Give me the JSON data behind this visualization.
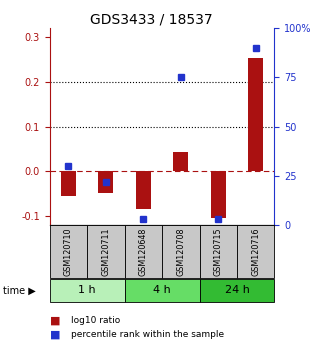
{
  "title": "GDS3433 / 18537",
  "samples": [
    "GSM120710",
    "GSM120711",
    "GSM120648",
    "GSM120708",
    "GSM120715",
    "GSM120716"
  ],
  "log10_ratio": [
    -0.055,
    -0.048,
    -0.085,
    0.042,
    -0.105,
    0.253
  ],
  "percentile_rank_pct": [
    30,
    22,
    3,
    75,
    3,
    90
  ],
  "time_groups": [
    {
      "label": "1 h",
      "span": [
        0,
        2
      ],
      "color": "#b8f0b8"
    },
    {
      "label": "4 h",
      "span": [
        2,
        4
      ],
      "color": "#66dd66"
    },
    {
      "label": "24 h",
      "span": [
        4,
        6
      ],
      "color": "#33bb33"
    }
  ],
  "ylim_left": [
    -0.12,
    0.32
  ],
  "ylim_right": [
    0,
    100
  ],
  "yticks_left": [
    -0.1,
    0.0,
    0.1,
    0.2,
    0.3
  ],
  "yticks_right": [
    0,
    25,
    50,
    75,
    100
  ],
  "bar_color_red": "#aa1111",
  "bar_color_blue": "#2233cc",
  "background_color": "white",
  "bar_width": 0.4,
  "title_fontsize": 10,
  "tick_fontsize": 7,
  "label_fontsize": 6.5
}
